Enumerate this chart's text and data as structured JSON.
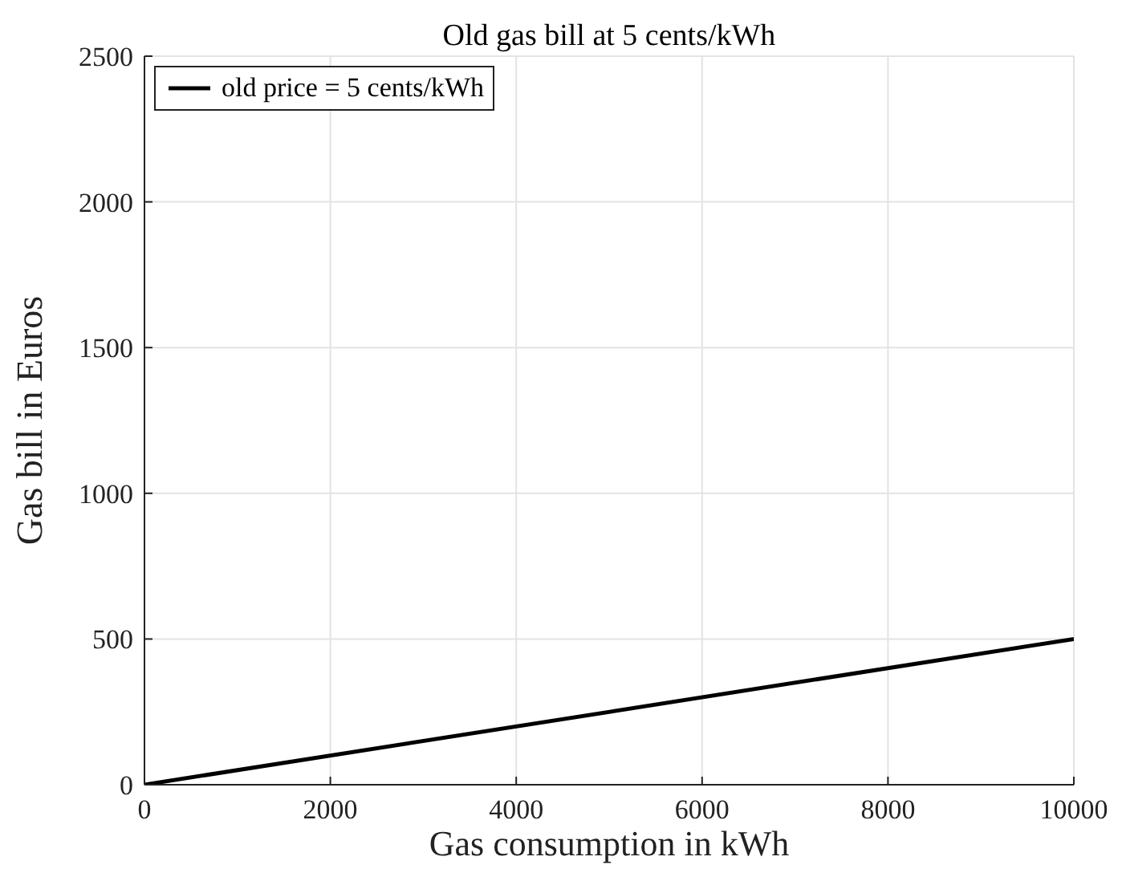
{
  "chart_data": {
    "type": "line",
    "title": "Old gas bill at 5 cents/kWh",
    "xlabel": "Gas consumption in kWh",
    "ylabel": "Gas bill in Euros",
    "x": [
      0,
      10000
    ],
    "series": [
      {
        "name": "old price = 5 cents/kWh",
        "color": "#000000",
        "values": [
          0,
          500
        ]
      }
    ],
    "xlim": [
      0,
      10000
    ],
    "xticks": [
      0,
      2000,
      4000,
      6000,
      8000,
      10000
    ],
    "ylim": [
      0,
      2500
    ],
    "yticks": [
      0,
      500,
      1000,
      1500,
      2000,
      2500
    ],
    "grid": true,
    "legend": "top left",
    "marker": "none",
    "line_style": "solid"
  }
}
